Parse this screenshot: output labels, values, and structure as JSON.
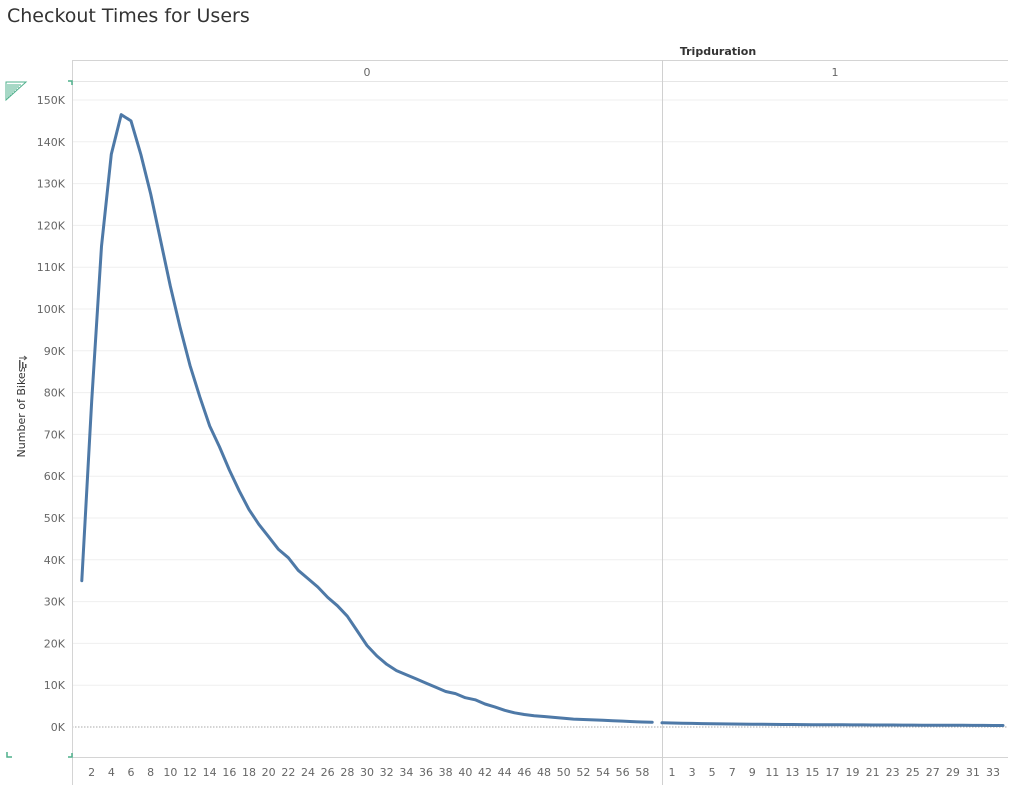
{
  "page": {
    "title": "Checkout Times for Users"
  },
  "chart_data": {
    "type": "line",
    "title": "Checkout Times for Users",
    "column_field": "Tripduration",
    "ylabel": "Number of Bikes",
    "ylim": [
      0,
      155000
    ],
    "y_ticks": [
      0,
      10000,
      20000,
      30000,
      40000,
      50000,
      60000,
      70000,
      80000,
      90000,
      100000,
      110000,
      120000,
      130000,
      140000,
      150000
    ],
    "y_tick_labels": [
      "0K",
      "10K",
      "20K",
      "30K",
      "40K",
      "50K",
      "60K",
      "70K",
      "80K",
      "90K",
      "100K",
      "110K",
      "120K",
      "130K",
      "140K",
      "150K"
    ],
    "grid": true,
    "line_color": "#4e79a7",
    "panes": [
      {
        "header": "0",
        "x_ticks": [
          2,
          4,
          6,
          8,
          10,
          12,
          14,
          16,
          18,
          20,
          22,
          24,
          26,
          28,
          30,
          32,
          34,
          36,
          38,
          40,
          42,
          44,
          46,
          48,
          50,
          52,
          54,
          56,
          58
        ],
        "x": [
          1,
          2,
          3,
          4,
          5,
          6,
          7,
          8,
          9,
          10,
          11,
          12,
          13,
          14,
          15,
          16,
          17,
          18,
          19,
          20,
          21,
          22,
          23,
          24,
          25,
          26,
          27,
          28,
          29,
          30,
          31,
          32,
          33,
          34,
          35,
          36,
          37,
          38,
          39,
          40,
          41,
          42,
          43,
          44,
          45,
          46,
          47,
          48,
          49,
          50,
          51,
          52,
          53,
          54,
          55,
          56,
          57,
          58,
          59
        ],
        "values": [
          35000,
          78000,
          115000,
          137000,
          146500,
          145000,
          137000,
          127500,
          116500,
          105500,
          95500,
          86500,
          79000,
          72000,
          67000,
          61500,
          56500,
          52000,
          48500,
          45500,
          42500,
          40500,
          37500,
          35500,
          33500,
          31000,
          29000,
          26500,
          23000,
          19500,
          17000,
          15000,
          13500,
          12500,
          11500,
          10500,
          9500,
          8500,
          8000,
          7000,
          6500,
          5500,
          4800,
          4000,
          3400,
          3000,
          2700,
          2500,
          2300,
          2100,
          1900,
          1800,
          1700,
          1600,
          1500,
          1400,
          1300,
          1200,
          1150
        ]
      },
      {
        "header": "1",
        "x_ticks": [
          1,
          3,
          5,
          7,
          9,
          11,
          13,
          15,
          17,
          19,
          21,
          23,
          25,
          27,
          29,
          31,
          33
        ],
        "x": [
          0,
          1,
          2,
          3,
          4,
          5,
          6,
          7,
          8,
          9,
          10,
          11,
          12,
          13,
          14,
          15,
          16,
          17,
          18,
          19,
          20,
          21,
          22,
          23,
          24,
          25,
          26,
          27,
          28,
          29,
          30,
          31,
          32,
          33,
          34
        ],
        "values": [
          1000,
          950,
          900,
          850,
          820,
          780,
          750,
          720,
          700,
          680,
          650,
          630,
          610,
          590,
          570,
          560,
          540,
          530,
          520,
          510,
          500,
          490,
          480,
          470,
          460,
          450,
          440,
          430,
          420,
          410,
          400,
          390,
          380,
          370,
          360
        ]
      }
    ]
  }
}
